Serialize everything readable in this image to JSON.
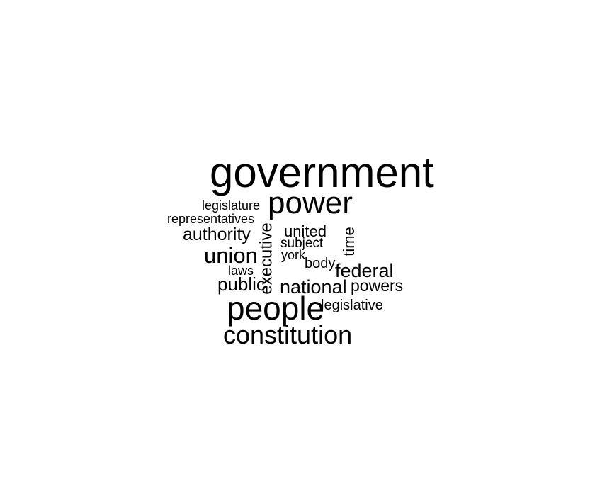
{
  "word_cloud": {
    "text_color": "#000000",
    "background": "#ffffff",
    "words": [
      {
        "text": "government",
        "rotated": false
      },
      {
        "text": "power",
        "rotated": false
      },
      {
        "text": "legislature",
        "rotated": false
      },
      {
        "text": "representatives",
        "rotated": false
      },
      {
        "text": "authority",
        "rotated": false
      },
      {
        "text": "united",
        "rotated": false
      },
      {
        "text": "subject",
        "rotated": false
      },
      {
        "text": "york",
        "rotated": false
      },
      {
        "text": "executive",
        "rotated": true
      },
      {
        "text": "time",
        "rotated": true
      },
      {
        "text": "union",
        "rotated": false
      },
      {
        "text": "body",
        "rotated": false
      },
      {
        "text": "laws",
        "rotated": false
      },
      {
        "text": "federal",
        "rotated": false
      },
      {
        "text": "public",
        "rotated": false
      },
      {
        "text": "national",
        "rotated": false
      },
      {
        "text": "powers",
        "rotated": false
      },
      {
        "text": "people",
        "rotated": false
      },
      {
        "text": "legislative",
        "rotated": false
      },
      {
        "text": "constitution",
        "rotated": false
      }
    ]
  }
}
